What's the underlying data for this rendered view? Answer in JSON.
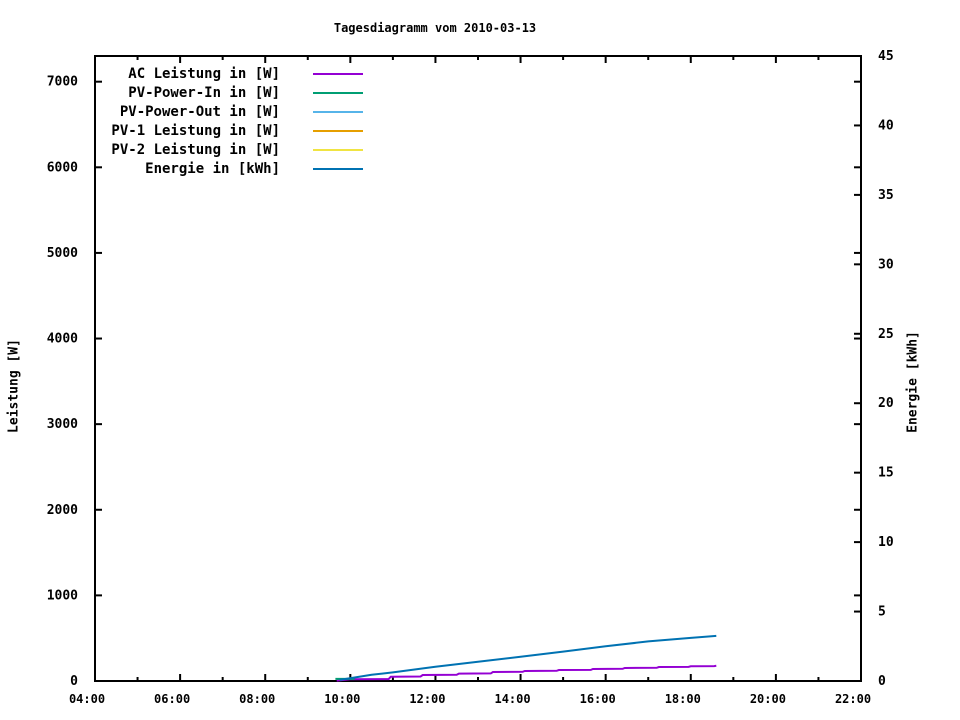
{
  "title": "Tagesdiagramm vom 2010-03-13",
  "colors": {
    "background": "#ffffff",
    "frame": "#000000",
    "text": "#000000",
    "ac": "#9400D3",
    "pv_power_in": "#009E73",
    "pv_power_out": "#56B4E9",
    "pv1": "#E69F00",
    "pv2": "#F0E442",
    "energie": "#0072B2"
  },
  "legend": [
    {
      "label": "AC Leistung in [W]",
      "color": "#9400D3"
    },
    {
      "label": "PV-Power-In in [W]",
      "color": "#009E73"
    },
    {
      "label": "PV-Power-Out in [W]",
      "color": "#56B4E9"
    },
    {
      "label": "PV-1 Leistung in [W]",
      "color": "#E69F00"
    },
    {
      "label": "PV-2 Leistung in [W]",
      "color": "#F0E442"
    },
    {
      "label": "Energie in [kWh]",
      "color": "#0072B2"
    }
  ],
  "chart_data": {
    "type": "line",
    "title": "Tagesdiagramm vom 2010-03-13",
    "xlabel": "",
    "ylabel": "Leistung [W]",
    "y2label": "Energie [kWh]",
    "grid": false,
    "legend_position": "top-left-inside",
    "xlim": [
      4,
      22
    ],
    "ylim": [
      0,
      7300
    ],
    "y2lim": [
      0,
      45
    ],
    "x_ticks": [
      {
        "v": 4,
        "label": "04:00"
      },
      {
        "v": 6,
        "label": "06:00"
      },
      {
        "v": 8,
        "label": "08:00"
      },
      {
        "v": 10,
        "label": "10:00"
      },
      {
        "v": 12,
        "label": "12:00"
      },
      {
        "v": 14,
        "label": "14:00"
      },
      {
        "v": 16,
        "label": "16:00"
      },
      {
        "v": 18,
        "label": "18:00"
      },
      {
        "v": 20,
        "label": "20:00"
      },
      {
        "v": 22,
        "label": "22:00"
      }
    ],
    "x_minor_ticks": [
      5,
      7,
      9,
      11,
      13,
      15,
      17,
      19,
      21
    ],
    "y_ticks": [
      {
        "v": 0,
        "label": "0"
      },
      {
        "v": 1000,
        "label": "1000"
      },
      {
        "v": 2000,
        "label": "2000"
      },
      {
        "v": 3000,
        "label": "3000"
      },
      {
        "v": 4000,
        "label": "4000"
      },
      {
        "v": 5000,
        "label": "5000"
      },
      {
        "v": 6000,
        "label": "6000"
      },
      {
        "v": 7000,
        "label": "7000"
      }
    ],
    "y2_ticks": [
      {
        "v": 0,
        "label": "0"
      },
      {
        "v": 5,
        "label": "5"
      },
      {
        "v": 10,
        "label": "10"
      },
      {
        "v": 15,
        "label": "15"
      },
      {
        "v": 20,
        "label": "20"
      },
      {
        "v": 25,
        "label": "25"
      },
      {
        "v": 30,
        "label": "30"
      },
      {
        "v": 35,
        "label": "35"
      },
      {
        "v": 40,
        "label": "40"
      },
      {
        "v": 45,
        "label": "45"
      }
    ],
    "series": [
      {
        "name": "AC Leistung in [W]",
        "color": "#9400D3",
        "axis": "y1",
        "points": [
          [
            9.68,
            5
          ],
          [
            10.0,
            20
          ],
          [
            10.9,
            22
          ],
          [
            10.95,
            50
          ],
          [
            11.65,
            52
          ],
          [
            11.7,
            70
          ],
          [
            12.5,
            72
          ],
          [
            12.55,
            87
          ],
          [
            13.3,
            89
          ],
          [
            13.35,
            105
          ],
          [
            14.05,
            107
          ],
          [
            14.1,
            117
          ],
          [
            14.85,
            119
          ],
          [
            14.9,
            128
          ],
          [
            15.65,
            130
          ],
          [
            15.7,
            140
          ],
          [
            16.4,
            142
          ],
          [
            16.45,
            152
          ],
          [
            17.2,
            154
          ],
          [
            17.25,
            163
          ],
          [
            17.95,
            165
          ],
          [
            18.0,
            172
          ],
          [
            18.55,
            174
          ],
          [
            18.6,
            178
          ]
        ]
      },
      {
        "name": "PV-Power-In in [W]",
        "color": "#009E73",
        "axis": "y1",
        "points": [
          [
            9.65,
            25
          ],
          [
            10.1,
            25
          ]
        ]
      },
      {
        "name": "PV-Power-Out in [W]",
        "color": "#56B4E9",
        "axis": "y1",
        "points": []
      },
      {
        "name": "PV-1 Leistung in [W]",
        "color": "#E69F00",
        "axis": "y1",
        "points": []
      },
      {
        "name": "PV-2 Leistung in [W]",
        "color": "#F0E442",
        "axis": "y1",
        "points": []
      },
      {
        "name": "Energie in [kWh]",
        "color": "#0072B2",
        "axis": "y2",
        "points": [
          [
            9.75,
            0.08
          ],
          [
            10.1,
            0.25
          ],
          [
            10.5,
            0.45
          ],
          [
            11.0,
            0.62
          ],
          [
            12.0,
            1.02
          ],
          [
            13.0,
            1.38
          ],
          [
            14.0,
            1.75
          ],
          [
            15.0,
            2.12
          ],
          [
            16.0,
            2.5
          ],
          [
            17.0,
            2.85
          ],
          [
            18.0,
            3.1
          ],
          [
            18.6,
            3.25
          ]
        ]
      }
    ]
  }
}
